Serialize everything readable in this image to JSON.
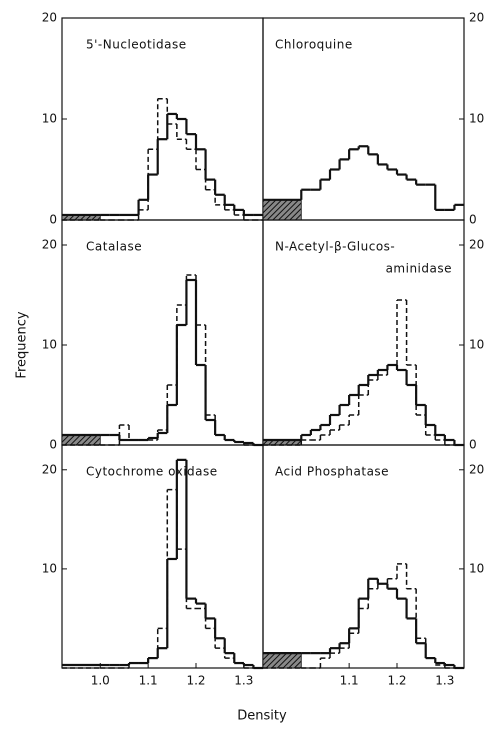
{
  "xlabel": "Density",
  "ylabel": "Frequency",
  "chart_data": [
    {
      "type": "histogram",
      "title": [
        "5'-Nucleotidase"
      ],
      "xlim": [
        0.92,
        1.34
      ],
      "ylim": [
        0,
        20
      ],
      "yticks": [
        0,
        10,
        20
      ],
      "bins": [
        0.92,
        1.0,
        1.02,
        1.04,
        1.06,
        1.08,
        1.1,
        1.12,
        1.14,
        1.16,
        1.18,
        1.2,
        1.22,
        1.24,
        1.26,
        1.28,
        1.3,
        1.32,
        1.34
      ],
      "hatched_value": 0.5,
      "series": [
        {
          "style": "solid",
          "color": "#111111",
          "values": [
            0.5,
            0.5,
            0.5,
            0.5,
            0.5,
            2,
            4.5,
            8,
            10.5,
            10,
            8.5,
            7,
            4,
            2.5,
            1.5,
            1,
            0.5,
            0.5
          ]
        },
        {
          "style": "dashed",
          "color": "#111111",
          "values": [
            0,
            0,
            0,
            0,
            0,
            1,
            7,
            12,
            9.5,
            8,
            7,
            5,
            3,
            1.5,
            1,
            0.5,
            0,
            0
          ]
        }
      ]
    },
    {
      "type": "histogram",
      "title": [
        "Chloroquine"
      ],
      "xlim": [
        0.92,
        1.34
      ],
      "ylim": [
        0,
        20
      ],
      "yticks": [
        0,
        10,
        20
      ],
      "bins": [
        0.92,
        1.0,
        1.02,
        1.04,
        1.06,
        1.08,
        1.1,
        1.12,
        1.14,
        1.16,
        1.18,
        1.2,
        1.22,
        1.24,
        1.26,
        1.28,
        1.3,
        1.32,
        1.34
      ],
      "hatched_value": 2,
      "series": [
        {
          "style": "solid",
          "color": "#111111",
          "values": [
            2,
            3,
            3,
            4,
            5,
            6,
            7,
            7.3,
            6.5,
            5.5,
            5,
            4.5,
            4,
            3.5,
            3.5,
            1,
            1,
            1.5
          ]
        }
      ]
    },
    {
      "type": "histogram",
      "title": [
        "Catalase"
      ],
      "xlim": [
        0.92,
        1.34
      ],
      "ylim": [
        0,
        22.5
      ],
      "yticks": [
        0,
        10,
        20
      ],
      "bins": [
        0.92,
        1.0,
        1.02,
        1.04,
        1.06,
        1.08,
        1.1,
        1.12,
        1.14,
        1.16,
        1.18,
        1.2,
        1.22,
        1.24,
        1.26,
        1.28,
        1.3,
        1.32,
        1.34
      ],
      "hatched_value": 1,
      "series": [
        {
          "style": "solid",
          "color": "#111111",
          "values": [
            1,
            1,
            1,
            0.5,
            0.5,
            0.5,
            0.7,
            1.2,
            4,
            12,
            16.5,
            8,
            2.5,
            1,
            0.5,
            0.3,
            0.2,
            0
          ]
        },
        {
          "style": "dashed",
          "color": "#111111",
          "values": [
            0,
            0,
            0,
            2,
            0.5,
            0.5,
            0.5,
            1.5,
            6,
            14,
            17,
            12,
            3,
            1,
            0.5,
            0.3,
            0,
            0
          ]
        }
      ]
    },
    {
      "type": "histogram",
      "title": [
        "N-Acetyl-β-Glucos-",
        "aminidase"
      ],
      "xlim": [
        0.92,
        1.34
      ],
      "ylim": [
        0,
        22.5
      ],
      "yticks": [
        0,
        10,
        20
      ],
      "bins": [
        0.92,
        1.0,
        1.02,
        1.04,
        1.06,
        1.08,
        1.1,
        1.12,
        1.14,
        1.16,
        1.18,
        1.2,
        1.22,
        1.24,
        1.26,
        1.28,
        1.3,
        1.32,
        1.34
      ],
      "hatched_value": 0.5,
      "series": [
        {
          "style": "solid",
          "color": "#111111",
          "values": [
            0.5,
            1,
            1.5,
            2,
            3,
            4,
            5,
            6,
            7,
            7.5,
            8,
            7.5,
            6,
            4,
            2,
            1,
            0.5,
            0
          ]
        },
        {
          "style": "dashed",
          "color": "#111111",
          "values": [
            0,
            0.5,
            0.5,
            1,
            1.5,
            2,
            3,
            5,
            6.5,
            7,
            8,
            14.5,
            8,
            3,
            1,
            0.5,
            0,
            0
          ]
        }
      ]
    },
    {
      "type": "histogram",
      "title": [
        "Cytochrome oxidase"
      ],
      "xlim": [
        0.92,
        1.34
      ],
      "ylim": [
        0,
        22.5
      ],
      "yticks": [
        10,
        20
      ],
      "xticks": [
        {
          "value": 1,
          "label": "1.0"
        },
        1.1,
        1.2,
        1.3
      ],
      "bins": [
        0.92,
        1.0,
        1.02,
        1.04,
        1.06,
        1.08,
        1.1,
        1.12,
        1.14,
        1.16,
        1.18,
        1.2,
        1.22,
        1.24,
        1.26,
        1.28,
        1.3,
        1.32,
        1.34
      ],
      "series": [
        {
          "style": "solid",
          "color": "#111111",
          "values": [
            0.3,
            0.3,
            0.3,
            0.3,
            0.5,
            0.5,
            1,
            2,
            11,
            21,
            7,
            6.5,
            5,
            3,
            1.5,
            0.5,
            0.3,
            0
          ]
        },
        {
          "style": "dashed",
          "color": "#111111",
          "values": [
            0,
            0,
            0,
            0,
            0.5,
            0.5,
            1,
            4,
            18,
            12,
            6,
            6,
            4,
            2,
            1,
            0.5,
            0,
            0
          ]
        }
      ]
    },
    {
      "type": "histogram",
      "title": [
        "Acid Phosphatase"
      ],
      "xlim": [
        0.92,
        1.34
      ],
      "ylim": [
        0,
        22.5
      ],
      "yticks": [
        10,
        20
      ],
      "xticks": [
        1.1,
        1.2,
        1.3
      ],
      "bins": [
        0.92,
        1.0,
        1.02,
        1.04,
        1.06,
        1.08,
        1.1,
        1.12,
        1.14,
        1.16,
        1.18,
        1.2,
        1.22,
        1.24,
        1.26,
        1.28,
        1.3,
        1.32,
        1.34
      ],
      "hatched_value": 1.5,
      "series": [
        {
          "style": "solid",
          "color": "#111111",
          "values": [
            1.5,
            1.5,
            1.5,
            1.5,
            2,
            2.5,
            4,
            7,
            9,
            8.5,
            8,
            7,
            5,
            2.5,
            1,
            0.5,
            0.3,
            0
          ]
        },
        {
          "style": "dashed",
          "color": "#111111",
          "values": [
            0,
            0,
            0,
            1,
            1.5,
            2,
            3.5,
            6,
            8,
            8.5,
            9,
            10.5,
            8,
            3,
            1,
            0.3,
            0,
            0
          ]
        }
      ]
    }
  ]
}
